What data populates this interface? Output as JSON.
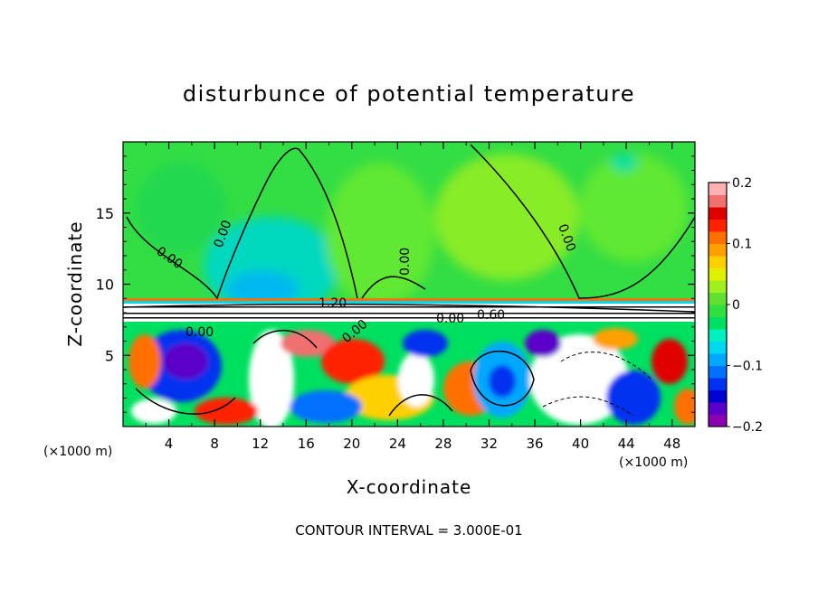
{
  "chart_data": {
    "type": "heatmap",
    "title": "disturbunce of potential temperature",
    "xlabel": "X-coordinate",
    "ylabel": "Z-coordinate",
    "x_unit_left": "(×1000 m)",
    "x_unit_right": "(×1000 m)",
    "xlim": [
      0,
      50
    ],
    "ylim": [
      0,
      20
    ],
    "x_ticks": [
      4,
      8,
      12,
      16,
      20,
      24,
      28,
      32,
      36,
      40,
      44,
      48
    ],
    "y_ticks": [
      5,
      10,
      15
    ],
    "colorbar": {
      "range": [
        -0.2,
        0.2
      ],
      "tick_values": [
        0.2,
        0.1,
        0,
        -0.1,
        -0.2
      ],
      "tick_labels": [
        "0.2",
        "0.1",
        "0",
        "−0.1",
        "−0.2"
      ],
      "colors": [
        "#8b00b0",
        "#5a00c8",
        "#0000d0",
        "#0030f0",
        "#0070ff",
        "#00a8ff",
        "#00d8f0",
        "#00f0c0",
        "#00e060",
        "#30e040",
        "#60e030",
        "#a0f020",
        "#e0f000",
        "#ffd000",
        "#ffa000",
        "#ff7000",
        "#ff2000",
        "#e00000",
        "#f07070",
        "#ffb0b0"
      ]
    },
    "contour_labels": [
      "0.00",
      "0.00",
      "0.00",
      "0.00",
      "0.00",
      "0.00",
      "1.20",
      "0.00",
      "0.60"
    ],
    "footer": "CONTOUR INTERVAL = 3.000E-01"
  }
}
